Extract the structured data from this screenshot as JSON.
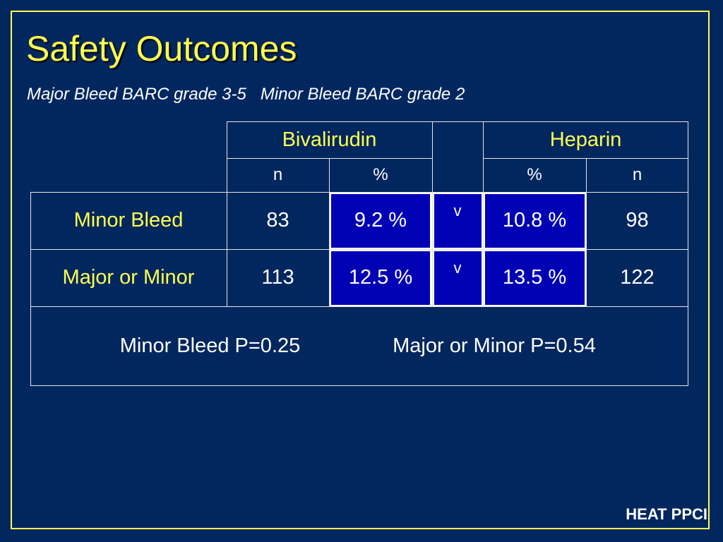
{
  "slide": {
    "title": "Safety Outcomes",
    "subtitle": "Major Bleed BARC grade 3-5   Minor Bleed BARC grade 2",
    "brand": "HEAT PPCI"
  },
  "table": {
    "group_headers": {
      "bivalirudin": "Bivalirudin",
      "heparin": "Heparin"
    },
    "sub_headers": {
      "biv_n": "n",
      "biv_pct": "%",
      "hep_pct": "%",
      "hep_n": "n"
    },
    "rows": [
      {
        "label": "Minor Bleed",
        "biv_n": "83",
        "biv_pct": "9.2 %",
        "compare": "v",
        "hep_pct": "10.8 %",
        "hep_n": "98"
      },
      {
        "label": "Major or Minor",
        "biv_n": "113",
        "biv_pct": "12.5 %",
        "compare": "v",
        "hep_pct": "13.5 %",
        "hep_n": "122"
      }
    ],
    "footer": {
      "minor_p": "Minor Bleed P=0.25",
      "major_minor_p": "Major or Minor P=0.54"
    }
  },
  "colors": {
    "background": "#02275f",
    "accent": "#ffff4d",
    "highlight": "#0000b4"
  }
}
